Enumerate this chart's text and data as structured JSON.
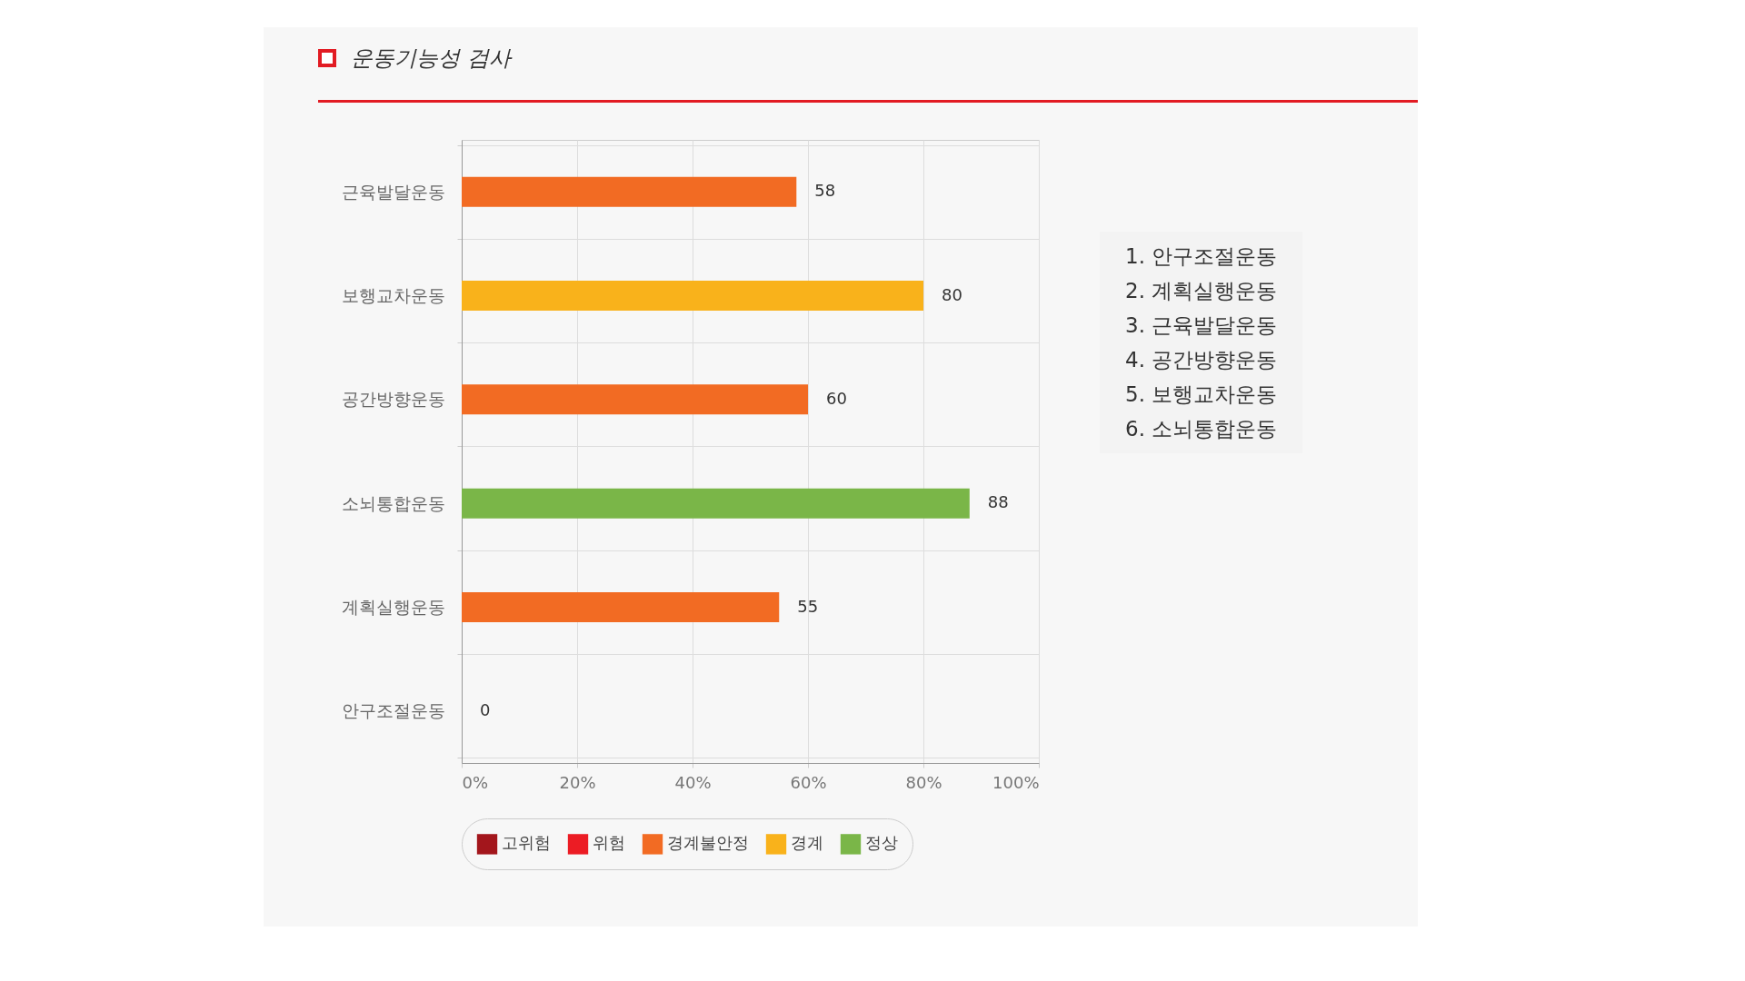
{
  "chart_data": {
    "type": "bar",
    "orientation": "horizontal",
    "title": "운동기능성 검사",
    "categories": [
      "근육발달운동",
      "보행교차운동",
      "공간방향운동",
      "소뇌통합운동",
      "계획실행운동",
      "안구조절운동"
    ],
    "series": [
      {
        "name": "고위험",
        "color": "#a3161c",
        "values": [
          null,
          null,
          null,
          null,
          null,
          0
        ]
      },
      {
        "name": "위험",
        "color": "#ec1c24",
        "values": [
          null,
          null,
          null,
          null,
          null,
          null
        ]
      },
      {
        "name": "경계불안정",
        "color": "#f26b23",
        "values": [
          58,
          null,
          60,
          null,
          55,
          null
        ]
      },
      {
        "name": "경계",
        "color": "#f9b21b",
        "values": [
          null,
          80,
          null,
          null,
          null,
          null
        ]
      },
      {
        "name": "정상",
        "color": "#7ab648",
        "values": [
          null,
          null,
          null,
          88,
          null,
          null
        ]
      }
    ],
    "xlim": [
      0,
      100
    ],
    "xticks": [
      {
        "value": 0,
        "label": "0%"
      },
      {
        "value": 20,
        "label": "20%"
      },
      {
        "value": 40,
        "label": "40%"
      },
      {
        "value": 60,
        "label": "60%"
      },
      {
        "value": 80,
        "label": "80%"
      },
      {
        "value": 100,
        "label": "100%"
      }
    ],
    "grid": true,
    "data_labels": true,
    "legend": "bottom",
    "annotations": [
      "1. 안구조절운동",
      "2. 계획실행운동",
      "3. 근육발달운동",
      "4. 공간방향운동",
      "5. 보행교차운동",
      "6. 소뇌통합운동"
    ]
  }
}
